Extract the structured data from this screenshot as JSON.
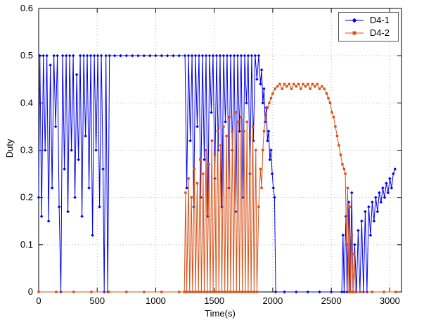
{
  "chart_data": {
    "type": "line",
    "title": "",
    "xlabel": "Time(s)",
    "ylabel": "Duty",
    "xlim": [
      0,
      3100
    ],
    "ylim": [
      0,
      0.6
    ],
    "x_ticks": [
      0,
      500,
      1000,
      1500,
      2000,
      2500,
      3000
    ],
    "y_ticks": [
      0,
      0.1,
      0.2,
      0.3,
      0.4,
      0.5,
      0.6
    ],
    "grid": true,
    "grid_style": "dotted",
    "legend_position": "top-right",
    "series": [
      {
        "name": "D4-1",
        "color": "#0000EE",
        "marker": "diamond",
        "points": [
          [
            0,
            0.2
          ],
          [
            10,
            0.5
          ],
          [
            25,
            0.16
          ],
          [
            40,
            0.5
          ],
          [
            55,
            0.3
          ],
          [
            70,
            0.5
          ],
          [
            85,
            0.15
          ],
          [
            100,
            0.48
          ],
          [
            115,
            0.22
          ],
          [
            130,
            0.5
          ],
          [
            145,
            0.35
          ],
          [
            160,
            0.5
          ],
          [
            175,
            0.18
          ],
          [
            190,
            0
          ],
          [
            205,
            0.5
          ],
          [
            220,
            0.26
          ],
          [
            235,
            0.5
          ],
          [
            250,
            0.17
          ],
          [
            265,
            0.5
          ],
          [
            280,
            0.3
          ],
          [
            295,
            0.5
          ],
          [
            310,
            0.2
          ],
          [
            325,
            0.46
          ],
          [
            340,
            0.28
          ],
          [
            355,
            0.5
          ],
          [
            370,
            0.16
          ],
          [
            385,
            0.5
          ],
          [
            400,
            0.33
          ],
          [
            415,
            0.5
          ],
          [
            430,
            0.22
          ],
          [
            445,
            0.5
          ],
          [
            460,
            0.12
          ],
          [
            475,
            0.5
          ],
          [
            490,
            0.3
          ],
          [
            505,
            0.5
          ],
          [
            520,
            0.18
          ],
          [
            535,
            0.5
          ],
          [
            550,
            0.26
          ],
          [
            560,
            0
          ],
          [
            575,
            0.5
          ],
          [
            590,
            0
          ],
          [
            605,
            0.5
          ],
          [
            650,
            0.5
          ],
          [
            700,
            0.5
          ],
          [
            750,
            0.5
          ],
          [
            800,
            0.5
          ],
          [
            850,
            0.5
          ],
          [
            900,
            0.5
          ],
          [
            950,
            0.5
          ],
          [
            1000,
            0.5
          ],
          [
            1050,
            0.5
          ],
          [
            1100,
            0.5
          ],
          [
            1150,
            0.5
          ],
          [
            1200,
            0.5
          ],
          [
            1250,
            0.5
          ],
          [
            1265,
            0.22
          ],
          [
            1280,
            0.5
          ],
          [
            1295,
            0.32
          ],
          [
            1310,
            0.5
          ],
          [
            1325,
            0.18
          ],
          [
            1340,
            0.5
          ],
          [
            1355,
            0.35
          ],
          [
            1370,
            0.5
          ],
          [
            1385,
            0.2
          ],
          [
            1400,
            0.5
          ],
          [
            1415,
            0.28
          ],
          [
            1430,
            0.5
          ],
          [
            1445,
            0.16
          ],
          [
            1460,
            0.5
          ],
          [
            1475,
            0.38
          ],
          [
            1490,
            0.5
          ],
          [
            1505,
            0.24
          ],
          [
            1520,
            0.5
          ],
          [
            1535,
            0.3
          ],
          [
            1550,
            0.5
          ],
          [
            1565,
            0.18
          ],
          [
            1580,
            0.5
          ],
          [
            1595,
            0.36
          ],
          [
            1610,
            0.5
          ],
          [
            1625,
            0.22
          ],
          [
            1640,
            0.5
          ],
          [
            1655,
            0.3
          ],
          [
            1670,
            0.5
          ],
          [
            1685,
            0.17
          ],
          [
            1700,
            0.5
          ],
          [
            1715,
            0.34
          ],
          [
            1730,
            0.5
          ],
          [
            1745,
            0.2
          ],
          [
            1760,
            0.5
          ],
          [
            1775,
            0.4
          ],
          [
            1790,
            0.5
          ],
          [
            1805,
            0.25
          ],
          [
            1820,
            0.5
          ],
          [
            1835,
            0.32
          ],
          [
            1850,
            0.5
          ],
          [
            1865,
            0.45
          ],
          [
            1880,
            0.5
          ],
          [
            1895,
            0.44
          ],
          [
            1905,
            0.47
          ],
          [
            1915,
            0.4
          ],
          [
            1925,
            0.43
          ],
          [
            1935,
            0.36
          ],
          [
            1945,
            0.39
          ],
          [
            1955,
            0.32
          ],
          [
            1965,
            0.34
          ],
          [
            1975,
            0.28
          ],
          [
            1985,
            0.3
          ],
          [
            1995,
            0.25
          ],
          [
            2005,
            0.22
          ],
          [
            2015,
            0.2
          ],
          [
            2025,
            0
          ],
          [
            2100,
            0
          ],
          [
            2200,
            0
          ],
          [
            2300,
            0
          ],
          [
            2400,
            0
          ],
          [
            2500,
            0
          ],
          [
            2590,
            0
          ],
          [
            2600,
            0.12
          ],
          [
            2610,
            0
          ],
          [
            2625,
            0.16
          ],
          [
            2635,
            0
          ],
          [
            2650,
            0.19
          ],
          [
            2660,
            0
          ],
          [
            2675,
            0.21
          ],
          [
            2685,
            0
          ],
          [
            2700,
            0.1
          ],
          [
            2715,
            0
          ],
          [
            2730,
            0.13
          ],
          [
            2745,
            0
          ],
          [
            2760,
            0.15
          ],
          [
            2775,
            0
          ],
          [
            2790,
            0.17
          ],
          [
            2805,
            0
          ],
          [
            2820,
            0.18
          ],
          [
            2835,
            0.12
          ],
          [
            2850,
            0.19
          ],
          [
            2865,
            0.15
          ],
          [
            2880,
            0.2
          ],
          [
            2895,
            0.17
          ],
          [
            2910,
            0.21
          ],
          [
            2925,
            0.19
          ],
          [
            2940,
            0.22
          ],
          [
            2955,
            0.2
          ],
          [
            2970,
            0.23
          ],
          [
            2985,
            0.21
          ],
          [
            3000,
            0.24
          ],
          [
            3015,
            0.22
          ],
          [
            3030,
            0.25
          ],
          [
            3045,
            0.26
          ]
        ]
      },
      {
        "name": "D4-2",
        "color": "#D95319",
        "marker": "square",
        "points": [
          [
            0,
            0
          ],
          [
            150,
            0
          ],
          [
            300,
            0
          ],
          [
            450,
            0
          ],
          [
            600,
            0
          ],
          [
            750,
            0
          ],
          [
            900,
            0
          ],
          [
            1050,
            0
          ],
          [
            1200,
            0
          ],
          [
            1245,
            0
          ],
          [
            1255,
            0.21
          ],
          [
            1265,
            0
          ],
          [
            1280,
            0.24
          ],
          [
            1290,
            0
          ],
          [
            1305,
            0.2
          ],
          [
            1315,
            0
          ],
          [
            1330,
            0.26
          ],
          [
            1340,
            0
          ],
          [
            1355,
            0.23
          ],
          [
            1365,
            0
          ],
          [
            1380,
            0.28
          ],
          [
            1390,
            0
          ],
          [
            1405,
            0.25
          ],
          [
            1415,
            0
          ],
          [
            1430,
            0.3
          ],
          [
            1440,
            0
          ],
          [
            1455,
            0.27
          ],
          [
            1465,
            0
          ],
          [
            1480,
            0.32
          ],
          [
            1490,
            0
          ],
          [
            1505,
            0.29
          ],
          [
            1515,
            0
          ],
          [
            1530,
            0.34
          ],
          [
            1540,
            0
          ],
          [
            1555,
            0.31
          ],
          [
            1565,
            0
          ],
          [
            1580,
            0.35
          ],
          [
            1590,
            0
          ],
          [
            1605,
            0.33
          ],
          [
            1615,
            0
          ],
          [
            1630,
            0.37
          ],
          [
            1640,
            0
          ],
          [
            1655,
            0.34
          ],
          [
            1665,
            0
          ],
          [
            1680,
            0.38
          ],
          [
            1690,
            0
          ],
          [
            1705,
            0.36
          ],
          [
            1715,
            0
          ],
          [
            1730,
            0.37
          ],
          [
            1740,
            0
          ],
          [
            1755,
            0.34
          ],
          [
            1765,
            0
          ],
          [
            1780,
            0.36
          ],
          [
            1790,
            0
          ],
          [
            1805,
            0.33
          ],
          [
            1815,
            0
          ],
          [
            1830,
            0.35
          ],
          [
            1840,
            0
          ],
          [
            1855,
            0.3
          ],
          [
            1865,
            0
          ],
          [
            1880,
            0.18
          ],
          [
            1895,
            0.26
          ],
          [
            1905,
            0.22
          ],
          [
            1915,
            0.3
          ],
          [
            1925,
            0.34
          ],
          [
            1940,
            0.37
          ],
          [
            1955,
            0.39
          ],
          [
            1970,
            0.4
          ],
          [
            1985,
            0.41
          ],
          [
            2000,
            0.42
          ],
          [
            2020,
            0.43
          ],
          [
            2040,
            0.435
          ],
          [
            2060,
            0.44
          ],
          [
            2080,
            0.43
          ],
          [
            2100,
            0.44
          ],
          [
            2120,
            0.435
          ],
          [
            2140,
            0.44
          ],
          [
            2160,
            0.43
          ],
          [
            2180,
            0.44
          ],
          [
            2200,
            0.435
          ],
          [
            2220,
            0.44
          ],
          [
            2240,
            0.43
          ],
          [
            2260,
            0.44
          ],
          [
            2280,
            0.435
          ],
          [
            2300,
            0.44
          ],
          [
            2320,
            0.43
          ],
          [
            2340,
            0.44
          ],
          [
            2360,
            0.435
          ],
          [
            2380,
            0.44
          ],
          [
            2400,
            0.43
          ],
          [
            2420,
            0.435
          ],
          [
            2440,
            0.43
          ],
          [
            2460,
            0.42
          ],
          [
            2475,
            0.41
          ],
          [
            2490,
            0.4
          ],
          [
            2505,
            0.38
          ],
          [
            2520,
            0.37
          ],
          [
            2535,
            0.35
          ],
          [
            2550,
            0.33
          ],
          [
            2565,
            0.31
          ],
          [
            2580,
            0.29
          ],
          [
            2595,
            0.27
          ],
          [
            2610,
            0.26
          ],
          [
            2620,
            0.25
          ],
          [
            2630,
            0.1
          ],
          [
            2640,
            0.22
          ],
          [
            2650,
            0
          ],
          [
            2658,
            0.18
          ],
          [
            2666,
            0
          ],
          [
            2676,
            0.12
          ],
          [
            2686,
            0
          ],
          [
            2696,
            0.08
          ],
          [
            2706,
            0
          ],
          [
            2750,
            0
          ],
          [
            2850,
            0
          ],
          [
            2950,
            0
          ],
          [
            3050,
            0
          ]
        ]
      }
    ]
  }
}
